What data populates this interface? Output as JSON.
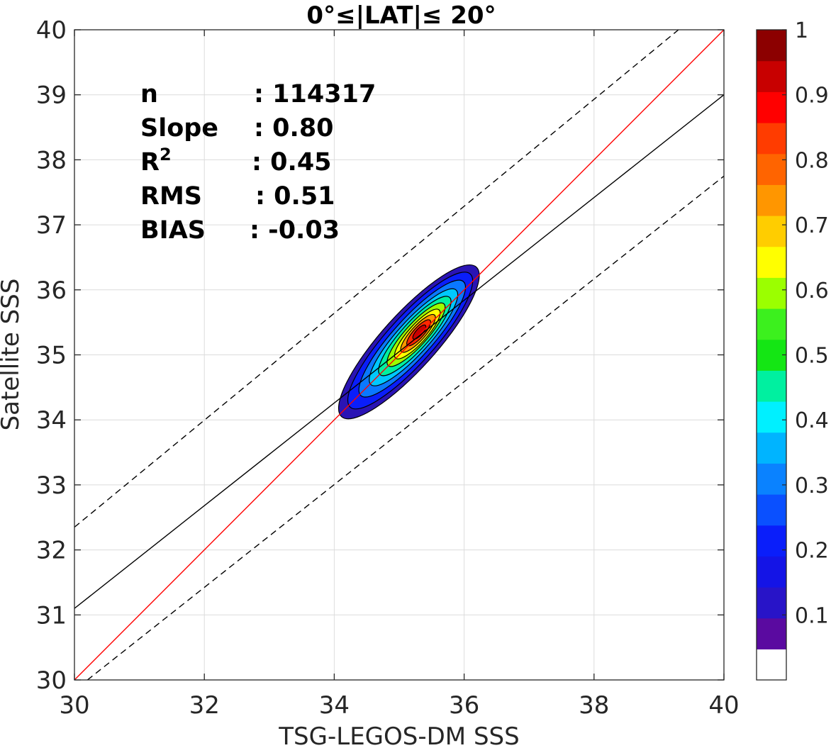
{
  "chart_data": {
    "type": "contour",
    "title": "0°≤|LAT|≤ 20°",
    "xlabel": "TSG-LEGOS-DM SSS",
    "ylabel": "Satellite SSS",
    "xlim": [
      30,
      40
    ],
    "ylim": [
      30,
      40
    ],
    "xticks": [
      30,
      32,
      34,
      36,
      38,
      40
    ],
    "yticks": [
      30,
      31,
      32,
      33,
      34,
      35,
      36,
      37,
      38,
      39,
      40
    ],
    "grid": true,
    "stats": [
      {
        "label": "n",
        "sep": ":",
        "value": "114317"
      },
      {
        "label": "Slope",
        "sep": ":",
        "value": "0.80"
      },
      {
        "label": "R",
        "sup": "2",
        "sep": ":",
        "value": "0.45"
      },
      {
        "label": "RMS",
        "sep": ":",
        "value": "0.51"
      },
      {
        "label": "BIAS",
        "sep": ":",
        "value": "-0.03"
      }
    ],
    "lines": [
      {
        "kind": "one-to-one",
        "color": "#ff0000",
        "style": "solid",
        "x": [
          30,
          40
        ],
        "y": [
          30,
          40
        ]
      },
      {
        "kind": "regression",
        "color": "#000000",
        "style": "solid",
        "x": [
          30,
          40
        ],
        "y": [
          31.1,
          39.0
        ]
      },
      {
        "kind": "upper-bound",
        "color": "#000000",
        "style": "dashed",
        "x": [
          30,
          39.3
        ],
        "y": [
          32.35,
          40.0
        ]
      },
      {
        "kind": "lower-bound",
        "color": "#000000",
        "style": "dashed",
        "x": [
          30.2,
          40
        ],
        "y": [
          30.0,
          37.75
        ]
      }
    ],
    "density": {
      "center_x": 35.32,
      "center_y": 35.35,
      "levels": [
        {
          "level": 0.05,
          "cx": 35.15,
          "cy": 35.2,
          "rx": 1.55,
          "ry": 0.42,
          "angle": 48,
          "color": "#2a14b4"
        },
        {
          "level": 0.15,
          "cx": 35.17,
          "cy": 35.22,
          "rx": 1.38,
          "ry": 0.36,
          "angle": 48,
          "color": "#0a1efa"
        },
        {
          "level": 0.25,
          "cx": 35.2,
          "cy": 35.25,
          "rx": 1.18,
          "ry": 0.3,
          "angle": 48,
          "color": "#0a78ff"
        },
        {
          "level": 0.35,
          "cx": 35.22,
          "cy": 35.27,
          "rx": 0.98,
          "ry": 0.25,
          "angle": 48,
          "color": "#00c8ff"
        },
        {
          "level": 0.45,
          "cx": 35.24,
          "cy": 35.29,
          "rx": 0.8,
          "ry": 0.21,
          "angle": 48,
          "color": "#00f0a0"
        },
        {
          "level": 0.55,
          "cx": 35.26,
          "cy": 35.31,
          "rx": 0.64,
          "ry": 0.17,
          "angle": 48,
          "color": "#9bff00"
        },
        {
          "level": 0.65,
          "cx": 35.28,
          "cy": 35.32,
          "rx": 0.5,
          "ry": 0.14,
          "angle": 48,
          "color": "#ffff00"
        },
        {
          "level": 0.75,
          "cx": 35.29,
          "cy": 35.33,
          "rx": 0.38,
          "ry": 0.11,
          "angle": 48,
          "color": "#ff9600"
        },
        {
          "level": 0.85,
          "cx": 35.3,
          "cy": 35.34,
          "rx": 0.26,
          "ry": 0.08,
          "angle": 48,
          "color": "#ff2800"
        },
        {
          "level": 0.95,
          "cx": 35.31,
          "cy": 35.35,
          "rx": 0.14,
          "ry": 0.05,
          "angle": 48,
          "color": "#c80000"
        }
      ]
    },
    "colorbar": {
      "range": [
        0,
        1
      ],
      "tick_values": [
        0.1,
        0.2,
        0.3,
        0.4,
        0.5,
        0.6,
        0.7,
        0.8,
        0.9,
        1
      ],
      "tick_labels": [
        "0.1",
        "0.2",
        "0.3",
        "0.4",
        "0.5",
        "0.6",
        "0.7",
        "0.8",
        "0.9",
        "1"
      ],
      "colors": [
        "#ffffff",
        "#5a0aa0",
        "#2814c8",
        "#1414e6",
        "#0a1efa",
        "#0a50ff",
        "#0a82ff",
        "#00b4ff",
        "#00f0ff",
        "#00f0a0",
        "#14e614",
        "#3cf01e",
        "#9bff00",
        "#ffff00",
        "#ffcd00",
        "#ff9600",
        "#ff6400",
        "#ff3c00",
        "#ff0000",
        "#c80000",
        "#8c0000"
      ]
    }
  }
}
